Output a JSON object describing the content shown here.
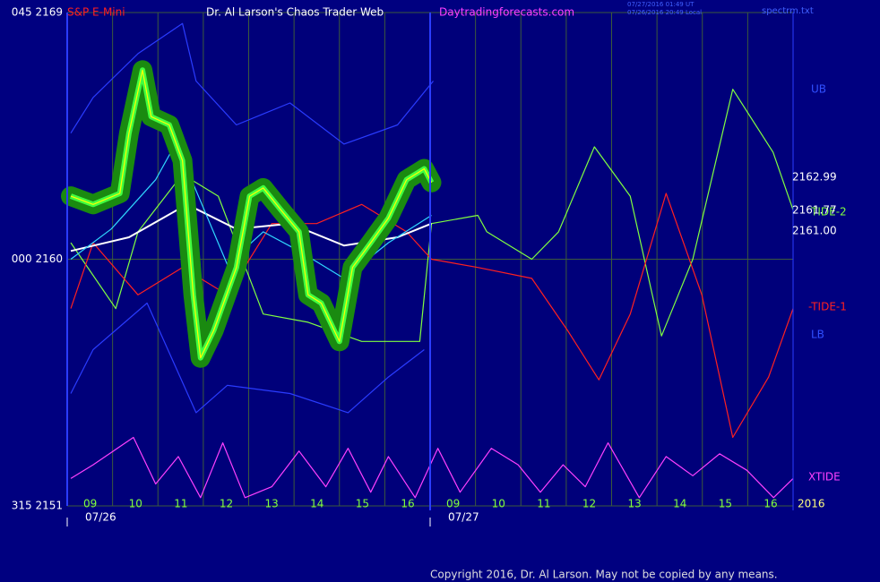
{
  "chart_data": {
    "type": "line",
    "title": "Dr. Al Larson's Chaos Trader Web",
    "instrument": "S&P E-Mini",
    "site": "Daytradingforecasts.com",
    "timestamps": [
      "07/27/2016 01:49 UT",
      "07/26/2016 20:49 Local"
    ],
    "file": "spectrm.txt",
    "copyright": "Copyright 2016, Dr. Al Larson. May not be copied by any means.",
    "dates": [
      {
        "value": 0,
        "label": "07/26"
      },
      {
        "value": 8,
        "label": "07/27"
      }
    ],
    "xlim": [
      0,
      16
    ],
    "xticks": [
      {
        "value": 1,
        "label": "09"
      },
      {
        "value": 2,
        "label": "10"
      },
      {
        "value": 3,
        "label": "11"
      },
      {
        "value": 4,
        "label": "12"
      },
      {
        "value": 5,
        "label": "13"
      },
      {
        "value": 6,
        "label": "14"
      },
      {
        "value": 7,
        "label": "15"
      },
      {
        "value": 8,
        "label": "16"
      },
      {
        "value": 9,
        "label": "09"
      },
      {
        "value": 10,
        "label": "10"
      },
      {
        "value": 11,
        "label": "11"
      },
      {
        "value": 12,
        "label": "12"
      },
      {
        "value": 13,
        "label": "13"
      },
      {
        "value": 14,
        "label": "14"
      },
      {
        "value": 15,
        "label": "15"
      },
      {
        "value": 16,
        "label": "16"
      }
    ],
    "ylim": [
      2151,
      2169
    ],
    "yticks": [
      {
        "value": 2151,
        "label": "315  2151"
      },
      {
        "value": 2160,
        "label": "000  2160"
      },
      {
        "value": 2169,
        "label": "045  2169"
      }
    ],
    "grid": true,
    "annotations": [
      "2162.99",
      "2161.77",
      "2161.00",
      "2016"
    ],
    "series": [
      {
        "name": "UB",
        "color": "#2a3cff",
        "x": [
          0.08,
          0.57,
          1.56,
          2.54,
          2.84,
          3.73,
          4.91,
          6.1,
          7.28,
          8.07
        ],
        "values": [
          2164.6,
          2165.9,
          2167.5,
          2168.6,
          2166.5,
          2164.9,
          2165.7,
          2164.2,
          2164.9,
          2166.5
        ]
      },
      {
        "name": "LB",
        "color": "#2a3cff",
        "x": [
          0.08,
          0.57,
          1.76,
          2.84,
          3.53,
          4.91,
          6.19,
          7.08,
          7.87
        ],
        "values": [
          2155.1,
          2156.7,
          2158.4,
          2154.4,
          2155.4,
          2155.1,
          2154.4,
          2155.7,
          2156.7
        ]
      },
      {
        "name": "TIDE-2",
        "color": "#80ff40",
        "x": [
          0.08,
          1.07,
          1.56,
          2.54,
          3.33,
          4.32,
          5.31,
          6.49,
          7.77,
          8.03,
          9.05,
          9.25,
          10.24,
          10.83,
          11.62,
          12.41,
          13.1,
          13.79,
          14.67,
          15.56,
          16.0
        ],
        "values": [
          2160.6,
          2158.2,
          2161.0,
          2163.1,
          2162.3,
          2158.0,
          2157.7,
          2157.0,
          2157.0,
          2161.3,
          2161.6,
          2161.0,
          2160.0,
          2161.0,
          2164.1,
          2162.3,
          2157.2,
          2160.0,
          2166.2,
          2163.9,
          2161.8
        ]
      },
      {
        "name": "-TIDE-1",
        "color": "#ff2020",
        "x": [
          0.08,
          0.57,
          1.56,
          2.54,
          3.53,
          4.51,
          5.5,
          6.49,
          7.48,
          8.03,
          9.05,
          10.24,
          11.03,
          11.72,
          12.41,
          13.2,
          13.99,
          14.67,
          15.46,
          16.0
        ],
        "values": [
          2158.2,
          2160.6,
          2158.7,
          2159.7,
          2158.7,
          2161.3,
          2161.3,
          2162.0,
          2161.0,
          2160.0,
          2159.7,
          2159.3,
          2157.4,
          2155.6,
          2158.0,
          2162.4,
          2158.7,
          2153.5,
          2155.7,
          2158.2
        ]
      },
      {
        "name": "XTIDE",
        "color": "#ff40ff",
        "x": [
          0.08,
          0.57,
          1.46,
          1.95,
          2.45,
          2.94,
          3.43,
          3.92,
          4.51,
          5.11,
          5.7,
          6.19,
          6.69,
          7.08,
          7.67,
          8.17,
          8.66,
          9.35,
          9.94,
          10.43,
          10.93,
          11.42,
          11.92,
          12.61,
          13.2,
          13.79,
          14.38,
          14.98,
          15.57,
          16.0
        ],
        "values": [
          2152.0,
          2152.5,
          2153.5,
          2151.8,
          2152.8,
          2151.3,
          2153.3,
          2151.3,
          2151.7,
          2153.0,
          2151.7,
          2153.1,
          2151.5,
          2152.8,
          2151.3,
          2153.1,
          2151.5,
          2153.1,
          2152.5,
          2151.5,
          2152.5,
          2151.7,
          2153.3,
          2151.3,
          2152.8,
          2152.1,
          2152.9,
          2152.3,
          2151.3,
          2152.0
        ]
      },
      {
        "color": "#ffffff",
        "x": [
          0.08,
          1.36,
          2.64,
          3.73,
          4.91,
          6.1,
          7.28,
          8.03
        ],
        "values": [
          2160.3,
          2160.8,
          2162.0,
          2161.1,
          2161.3,
          2160.5,
          2160.8,
          2161.3
        ]
      },
      {
        "color": "#30d8ff",
        "x": [
          0.08,
          0.97,
          1.95,
          2.35,
          2.74,
          3.53,
          4.32,
          5.11,
          6.1,
          7.08,
          8.03
        ],
        "values": [
          2160.0,
          2161.1,
          2162.9,
          2164.1,
          2162.9,
          2159.8,
          2161.0,
          2160.3,
          2159.3,
          2160.6,
          2161.6
        ]
      },
      {
        "color": "#ffff00",
        "x": [
          0.08,
          0.57,
          1.16,
          1.36,
          1.66,
          1.85,
          2.25,
          2.54,
          2.78,
          2.94,
          3.23,
          3.73,
          4.02,
          4.32,
          4.71,
          5.11,
          5.31,
          5.6,
          6.0,
          6.29,
          6.69,
          7.08,
          7.48,
          7.87,
          8.03
        ],
        "values": [
          2162.3,
          2162.0,
          2162.4,
          2164.6,
          2166.9,
          2165.2,
          2164.9,
          2163.6,
          2158.7,
          2156.4,
          2157.4,
          2159.7,
          2162.3,
          2162.6,
          2161.8,
          2161.0,
          2158.7,
          2158.4,
          2157.0,
          2159.7,
          2160.6,
          2161.5,
          2162.9,
          2163.3,
          2162.8
        ]
      }
    ]
  }
}
